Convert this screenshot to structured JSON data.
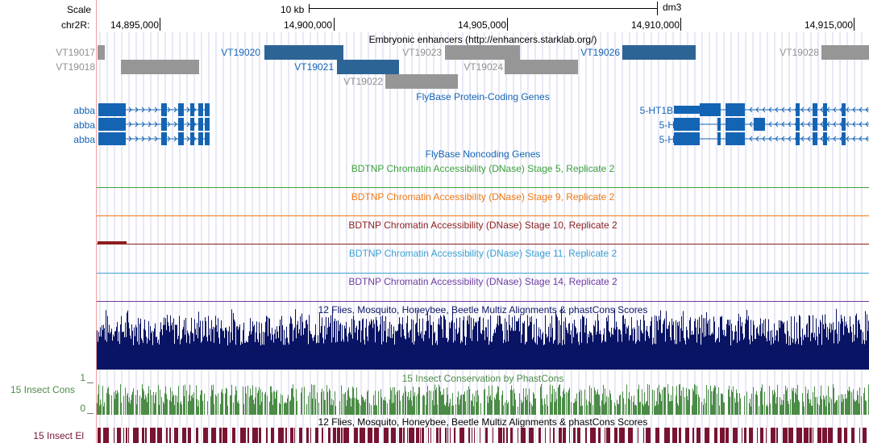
{
  "ruler": {
    "scale_label": "Scale",
    "scale_bar_label": "10 kb",
    "assembly": "dm3",
    "chrom_label": "chr2R:",
    "ticks": [
      "14,895,000",
      "14,900,000",
      "14,905,000",
      "14,910,000",
      "14,915,000"
    ]
  },
  "tracks": {
    "enhancers": {
      "title": "Embryonic enhancers (http://enhancers.starklab.org/)",
      "features": [
        {
          "name": "VT19017",
          "highlighted": false
        },
        {
          "name": "VT19018",
          "highlighted": false
        },
        {
          "name": "VT19020",
          "highlighted": true
        },
        {
          "name": "VT19021",
          "highlighted": true
        },
        {
          "name": "VT19022",
          "highlighted": false
        },
        {
          "name": "VT19023",
          "highlighted": false
        },
        {
          "name": "VT19024",
          "highlighted": false
        },
        {
          "name": "VT19026",
          "highlighted": true
        },
        {
          "name": "VT19028",
          "highlighted": false
        }
      ]
    },
    "protein_coding": {
      "title": "FlyBase Protein-Coding Genes",
      "left_genes": [
        "abba",
        "abba",
        "abba"
      ],
      "right_genes": [
        "5-HT1B",
        "5-HT1B",
        "5-HT1B"
      ]
    },
    "noncoding": {
      "title": "FlyBase Noncoding Genes"
    },
    "dnase": [
      {
        "title": "BDTNP Chromatin Accessibility (DNase) Stage 5, Replicate 2",
        "color": "#3ca03c"
      },
      {
        "title": "BDTNP Chromatin Accessibility (DNase) Stage 9, Replicate 2",
        "color": "#f07814"
      },
      {
        "title": "BDTNP Chromatin Accessibility (DNase) Stage 10, Replicate 2",
        "color": "#8c1e1e"
      },
      {
        "title": "BDTNP Chromatin Accessibility (DNase) Stage 11, Replicate 2",
        "color": "#3ca0d2"
      },
      {
        "title": "BDTNP Chromatin Accessibility (DNase) Stage 14, Replicate 2",
        "color": "#6e3ca0"
      }
    ],
    "multiz": {
      "title": "12 Flies, Mosquito, Honeybee, Beetle Multiz Alignments & phastCons Scores",
      "color": "#0a1464"
    },
    "phastcons": {
      "title": "15 Insect Conservation by PhastCons",
      "side_label": "15 Insect Cons",
      "y_max": "1",
      "y_min": "0",
      "color": "#4b8c46"
    },
    "elements": {
      "title": "12 Flies, Mosquito, Honeybee, Beetle Multiz Alignments & phastCons Scores",
      "side_label": "15 Insect El",
      "color": "#781432"
    }
  },
  "colors": {
    "highlighted_feature": "#2d6496",
    "gray_feature": "#969696",
    "gene": "#1464b4",
    "grid": "#d2d2f0",
    "left_edge": "#f0a0a0"
  }
}
